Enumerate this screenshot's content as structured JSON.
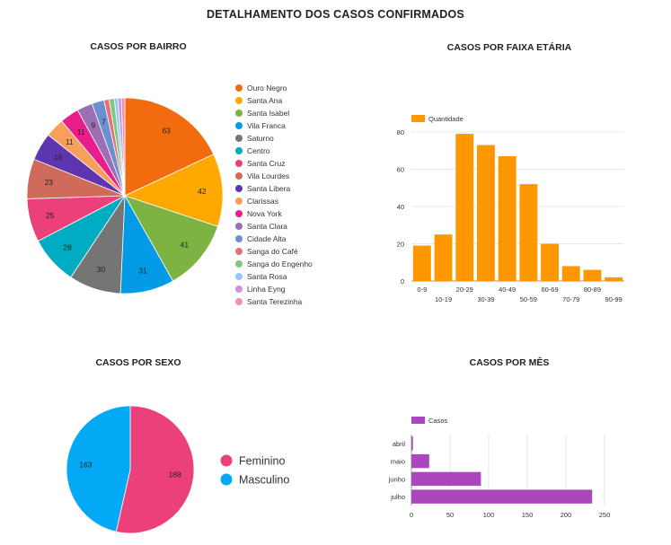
{
  "page": {
    "title": "DETALHAMENTO DOS CASOS CONFIRMADOS"
  },
  "chart_data": [
    {
      "id": "bairro",
      "type": "pie",
      "title": "CASOS POR BAIRRO",
      "legend_position": "right",
      "labels": [
        "Ouro Negro",
        "Santa Ana",
        "Santa Isabel",
        "Vila Franca",
        "Saturno",
        "Centro",
        "Santa Cruz",
        "Vila Lourdes",
        "Santa Libera",
        "Clarissas",
        "Nova York",
        "Santa Clara",
        "Cidade Alta",
        "Sanga do Café",
        "Sanga do Engenho",
        "Santa Rosa",
        "Linha Eyng",
        "Santa Terezinha"
      ],
      "values": [
        63,
        42,
        41,
        31,
        30,
        28,
        25,
        23,
        16,
        11,
        11,
        9,
        7,
        3,
        3,
        2,
        2,
        2
      ],
      "colors": [
        "#f26b0f",
        "#ffa800",
        "#7cb342",
        "#039be5",
        "#757575",
        "#00acc1",
        "#ec407a",
        "#d06b5c",
        "#5e35b1",
        "#f6a05c",
        "#e91e8c",
        "#9c6fb5",
        "#6c8fd1",
        "#e57373",
        "#81c784",
        "#90caf9",
        "#ce93d8",
        "#f48fb1"
      ],
      "slice_labels": [
        "63",
        "42",
        "41",
        "31",
        "30",
        "28",
        "25",
        "23",
        "16",
        "11",
        "11",
        "9",
        "7",
        "",
        "",
        "",
        "",
        ""
      ]
    },
    {
      "id": "faixa",
      "type": "bar",
      "title": "CASOS POR FAIXA ETÁRIA",
      "legend": "Quantidade",
      "legend_position": "top-left",
      "color": "#ff9800",
      "categories": [
        "0-9",
        "10-19",
        "20-29",
        "30-39",
        "40-49",
        "50-59",
        "60-69",
        "70-79",
        "80-89",
        "90-99"
      ],
      "values": [
        19,
        25,
        79,
        73,
        67,
        52,
        20,
        8,
        6,
        2
      ],
      "ylim": [
        0,
        80
      ],
      "yticks": [
        "0",
        "20",
        "40",
        "60",
        "80"
      ]
    },
    {
      "id": "sexo",
      "type": "pie",
      "title": "CASOS POR SEXO",
      "legend_position": "right",
      "labels": [
        "Feminino",
        "Masculino"
      ],
      "values": [
        188,
        163
      ],
      "colors": [
        "#ec407a",
        "#03a9f4"
      ],
      "slice_labels": [
        "188",
        "163"
      ]
    },
    {
      "id": "mes",
      "type": "hbar",
      "title": "CASOS POR MÊS",
      "legend": "Casos",
      "legend_position": "top-left",
      "color": "#ab47bc",
      "categories": [
        "abril",
        "maio",
        "junho",
        "julho"
      ],
      "values": [
        2,
        23,
        90,
        234
      ],
      "xlim": [
        0,
        250
      ],
      "xticks": [
        "0",
        "50",
        "100",
        "150",
        "200",
        "250"
      ]
    }
  ]
}
